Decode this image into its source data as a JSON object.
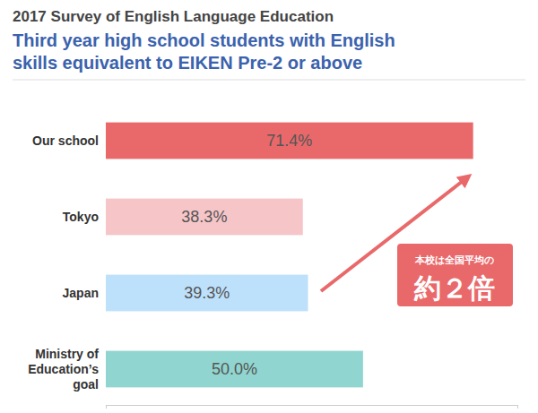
{
  "chart_data": {
    "type": "bar",
    "orientation": "horizontal",
    "title": "2017 Survey of English Language Education",
    "subtitle": [
      "Third year high school students with English",
      "skills equivalent to EIKEN Pre-2 or above"
    ],
    "categories": [
      "Our school",
      "Tokyo",
      "Japan",
      "Ministry of Education’s goal"
    ],
    "values": [
      71.4,
      38.3,
      39.3,
      50.0
    ],
    "value_labels": [
      "71.4%",
      "38.3%",
      "39.3%",
      "50.0%"
    ],
    "colors": [
      "#e9696b",
      "#f6c5c8",
      "#bde0fb",
      "#90d5d0"
    ],
    "xlim": [
      0,
      80
    ],
    "xticks": [
      0,
      80
    ],
    "tick_labels": false,
    "grid": false,
    "data_labels": true,
    "annotation": [
      "本校は全国平均の",
      "約２倍"
    ]
  }
}
